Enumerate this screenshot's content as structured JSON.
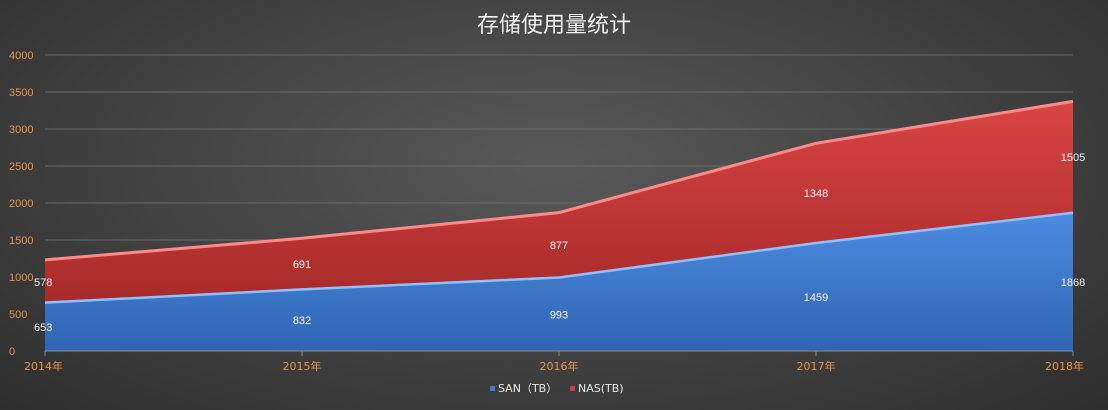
{
  "chart_data": {
    "type": "area",
    "stacked": true,
    "title": "存储使用量统计",
    "categories": [
      "2014年",
      "2015年",
      "2016年",
      "2017年",
      "2018年"
    ],
    "series": [
      {
        "name": "SAN（TB）",
        "values": [
          653,
          832,
          993,
          1459,
          1868
        ],
        "color": "#3d7bd0"
      },
      {
        "name": "NAS(TB)",
        "values": [
          578,
          691,
          877,
          1348,
          1505
        ],
        "color": "#d23c3c"
      }
    ],
    "ylim": [
      0,
      4000
    ],
    "yticks": [
      0,
      500,
      1000,
      1500,
      2000,
      2500,
      3000,
      3500,
      4000
    ],
    "grid": true,
    "legend": "bottom-center",
    "xlabel": "",
    "ylabel": ""
  }
}
